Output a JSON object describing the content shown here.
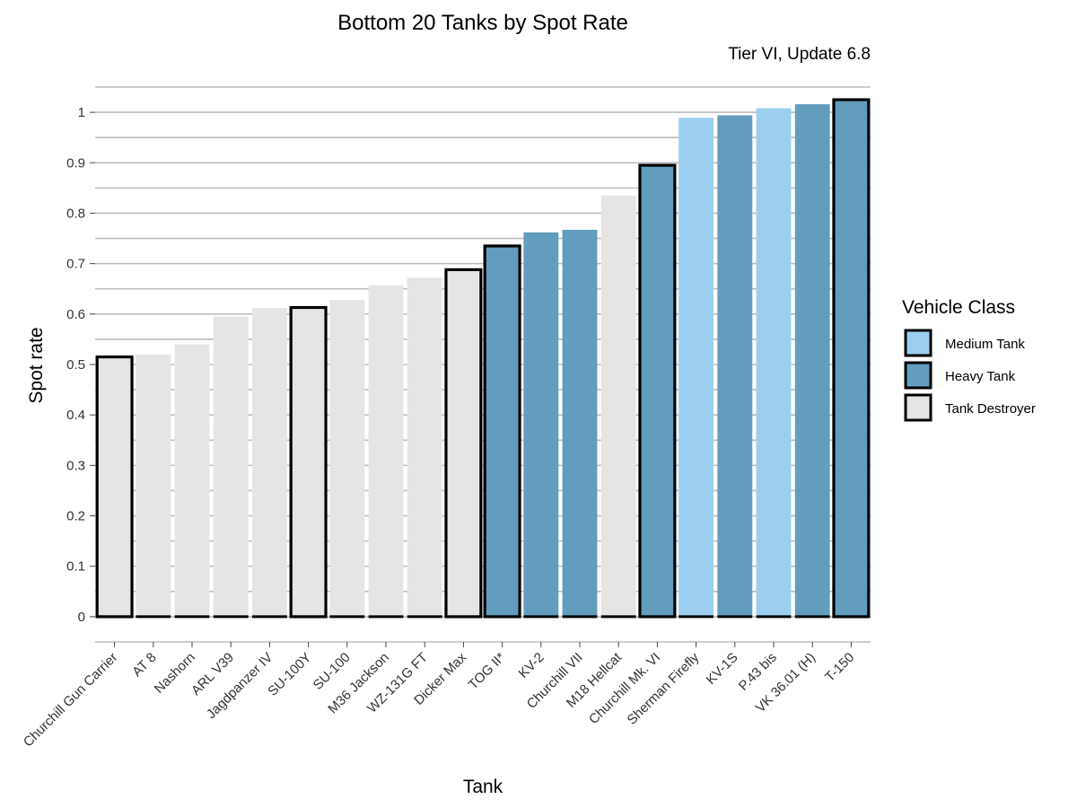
{
  "chart_data": {
    "type": "bar",
    "title": "Bottom 20 Tanks by Spot Rate",
    "subtitle": "Tier VI, Update 6.8",
    "xlabel": "Tank",
    "ylabel": "Spot rate",
    "ylim": [
      -0.05,
      1.05
    ],
    "yticks": [
      0,
      0.1,
      0.2,
      0.3,
      0.4,
      0.5,
      0.6,
      0.7,
      0.8,
      0.9,
      1
    ],
    "ytick_labels": [
      "0",
      "0.1",
      "0.2",
      "0.3",
      "0.4",
      "0.5",
      "0.6",
      "0.7",
      "0.8",
      "0.9",
      "1"
    ],
    "grid": true,
    "legend_position": "right",
    "legend": {
      "title": "Vehicle Class",
      "entries": [
        {
          "label": "Medium Tank",
          "color": "#9ccfef"
        },
        {
          "label": "Heavy Tank",
          "color": "#629dbd"
        },
        {
          "label": "Tank Destroyer",
          "color": "#e5e5e5"
        }
      ]
    },
    "categories": [
      "Churchill Gun Carrier",
      "AT 8",
      "Nashorn",
      "ARL V39",
      "Jagdpanzer IV",
      "SU-100Y",
      "SU-100",
      "M36 Jackson",
      "WZ-131G FT",
      "Dicker Max",
      "TOG II*",
      "KV-2",
      "Churchill VII",
      "M18 Hellcat",
      "Churchill Mk. VI",
      "Sherman Firefly",
      "KV-1S",
      "P.43 bis",
      "VK 36.01 (H)",
      "T-150"
    ],
    "values": [
      0.515,
      0.52,
      0.54,
      0.595,
      0.612,
      0.613,
      0.628,
      0.657,
      0.672,
      0.688,
      0.735,
      0.762,
      0.767,
      0.835,
      0.895,
      0.989,
      0.994,
      1.008,
      1.016,
      1.025
    ],
    "classes": [
      "Tank Destroyer",
      "Tank Destroyer",
      "Tank Destroyer",
      "Tank Destroyer",
      "Tank Destroyer",
      "Tank Destroyer",
      "Tank Destroyer",
      "Tank Destroyer",
      "Tank Destroyer",
      "Tank Destroyer",
      "Heavy Tank",
      "Heavy Tank",
      "Heavy Tank",
      "Tank Destroyer",
      "Heavy Tank",
      "Medium Tank",
      "Heavy Tank",
      "Medium Tank",
      "Heavy Tank",
      "Heavy Tank"
    ],
    "outlined": [
      true,
      false,
      false,
      false,
      false,
      true,
      false,
      false,
      false,
      true,
      true,
      false,
      false,
      false,
      true,
      false,
      false,
      false,
      false,
      true
    ]
  }
}
